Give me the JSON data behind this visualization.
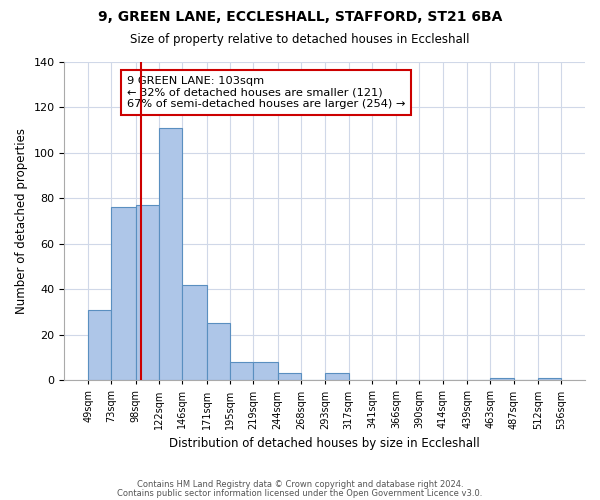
{
  "title": "9, GREEN LANE, ECCLESHALL, STAFFORD, ST21 6BA",
  "subtitle": "Size of property relative to detached houses in Eccleshall",
  "xlabel": "Distribution of detached houses by size in Eccleshall",
  "ylabel": "Number of detached properties",
  "bar_edges": [
    49,
    73,
    98,
    122,
    146,
    171,
    195,
    219,
    244,
    268,
    293,
    317,
    341,
    366,
    390,
    414,
    439,
    463,
    487,
    512,
    536
  ],
  "bar_heights": [
    31,
    76,
    77,
    111,
    42,
    25,
    8,
    8,
    3,
    0,
    3,
    0,
    0,
    0,
    0,
    0,
    0,
    1,
    0,
    1
  ],
  "bar_color": "#aec6e8",
  "bar_edgecolor": "#5a8fc0",
  "vline_x": 103,
  "vline_color": "#cc0000",
  "annotation_line1": "9 GREEN LANE: 103sqm",
  "annotation_line2": "← 32% of detached houses are smaller (121)",
  "annotation_line3": "67% of semi-detached houses are larger (254) →",
  "annotation_box_color": "#cc0000",
  "ylim": [
    0,
    140
  ],
  "yticks": [
    0,
    20,
    40,
    60,
    80,
    100,
    120,
    140
  ],
  "tick_labels": [
    "49sqm",
    "73sqm",
    "98sqm",
    "122sqm",
    "146sqm",
    "171sqm",
    "195sqm",
    "219sqm",
    "244sqm",
    "268sqm",
    "293sqm",
    "317sqm",
    "341sqm",
    "366sqm",
    "390sqm",
    "414sqm",
    "439sqm",
    "463sqm",
    "487sqm",
    "512sqm",
    "536sqm"
  ],
  "footer_line1": "Contains HM Land Registry data © Crown copyright and database right 2024.",
  "footer_line2": "Contains public sector information licensed under the Open Government Licence v3.0.",
  "background_color": "#ffffff",
  "grid_color": "#d0d8e8"
}
